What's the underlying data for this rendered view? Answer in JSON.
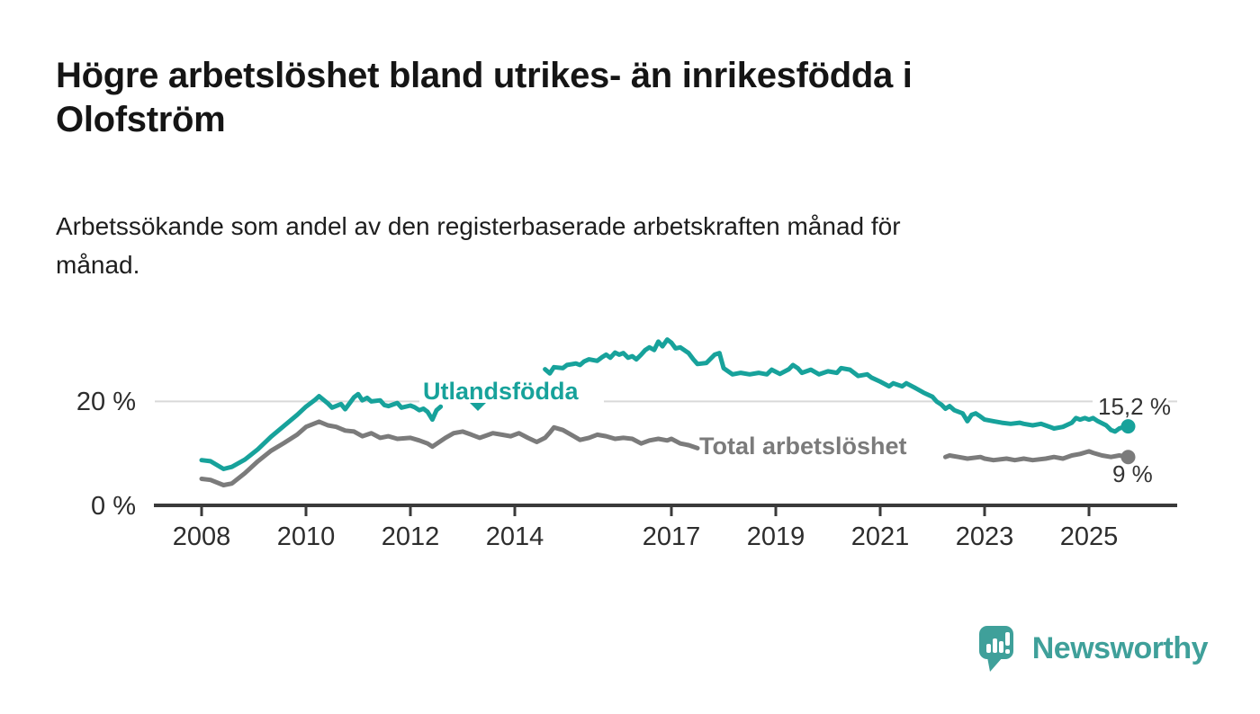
{
  "page": {
    "title_lines": [
      "Högre arbetslöshet bland utrikes- än inrikesfödda i",
      "Olofström"
    ],
    "subtitle_lines": [
      "Arbetssökande som andel av den registerbaserade arbetskraften månad för",
      "månad."
    ]
  },
  "chart_data": {
    "type": "line",
    "title": "Högre arbetslöshet bland utrikes- än inrikesfödda i Olofström",
    "subtitle": "Arbetssökande som andel av den registerbaserade arbetskraften månad för månad.",
    "unit": "%",
    "xlabel": "",
    "ylabel": "",
    "x_range_years": [
      2007.9,
      2026.1
    ],
    "ylim": [
      0,
      34
    ],
    "grid": "single horizontal gridline at 20 %",
    "legend_position": "labels inline on chart",
    "x_ticks": [
      {
        "value": 2008,
        "label": "2008"
      },
      {
        "value": 2010,
        "label": "2010"
      },
      {
        "value": 2012,
        "label": "2012"
      },
      {
        "value": 2014,
        "label": "2014"
      },
      {
        "value": 2017,
        "label": "2017"
      },
      {
        "value": 2019,
        "label": "2019"
      },
      {
        "value": 2021,
        "label": "2021"
      },
      {
        "value": 2023,
        "label": "2023"
      },
      {
        "value": 2025,
        "label": "2025"
      }
    ],
    "y_ticks": [
      {
        "value": 0,
        "label": "0 %"
      },
      {
        "value": 20,
        "label": "20 %"
      }
    ],
    "series": [
      {
        "name": "Utlandsfödda",
        "color": "#17a29b",
        "end_value": 15.2,
        "end_value_label": "15,2 %",
        "note": "line hidden behind its label between late 2012 and mid 2014",
        "points_year_percent": [
          [
            2008.0,
            8.7
          ],
          [
            2008.17,
            8.5
          ],
          [
            2008.42,
            7.0
          ],
          [
            2008.58,
            7.4
          ],
          [
            2008.83,
            8.8
          ],
          [
            2009.08,
            10.8
          ],
          [
            2009.33,
            13.2
          ],
          [
            2009.58,
            15.3
          ],
          [
            2009.83,
            17.4
          ],
          [
            2010.0,
            19.0
          ],
          [
            2010.17,
            20.3
          ],
          [
            2010.25,
            21.0
          ],
          [
            2010.42,
            19.6
          ],
          [
            2010.5,
            18.8
          ],
          [
            2010.67,
            19.5
          ],
          [
            2010.75,
            18.5
          ],
          [
            2010.92,
            20.8
          ],
          [
            2011.0,
            21.4
          ],
          [
            2011.08,
            20.2
          ],
          [
            2011.17,
            20.7
          ],
          [
            2011.25,
            20.0
          ],
          [
            2011.42,
            20.2
          ],
          [
            2011.5,
            19.3
          ],
          [
            2011.58,
            19.1
          ],
          [
            2011.75,
            19.7
          ],
          [
            2011.83,
            18.8
          ],
          [
            2012.0,
            19.2
          ],
          [
            2012.08,
            18.9
          ],
          [
            2012.17,
            18.3
          ],
          [
            2012.25,
            18.6
          ],
          [
            2012.33,
            18.0
          ],
          [
            2012.42,
            16.5
          ],
          [
            2012.5,
            18.3
          ],
          [
            2012.58,
            19.0
          ],
          null,
          [
            2014.58,
            26.2
          ],
          [
            2014.67,
            25.4
          ],
          [
            2014.75,
            26.6
          ],
          [
            2014.92,
            26.4
          ],
          [
            2015.0,
            27.0
          ],
          [
            2015.17,
            27.3
          ],
          [
            2015.25,
            27.0
          ],
          [
            2015.33,
            27.7
          ],
          [
            2015.42,
            28.1
          ],
          [
            2015.58,
            27.8
          ],
          [
            2015.67,
            28.5
          ],
          [
            2015.75,
            29.0
          ],
          [
            2015.83,
            28.4
          ],
          [
            2015.92,
            29.4
          ],
          [
            2016.0,
            29.0
          ],
          [
            2016.08,
            29.3
          ],
          [
            2016.17,
            28.4
          ],
          [
            2016.25,
            28.7
          ],
          [
            2016.33,
            28.1
          ],
          [
            2016.42,
            29.0
          ],
          [
            2016.5,
            29.9
          ],
          [
            2016.58,
            30.4
          ],
          [
            2016.67,
            29.9
          ],
          [
            2016.75,
            31.5
          ],
          [
            2016.83,
            30.6
          ],
          [
            2016.92,
            31.9
          ],
          [
            2017.0,
            31.3
          ],
          [
            2017.08,
            30.2
          ],
          [
            2017.17,
            30.4
          ],
          [
            2017.33,
            29.3
          ],
          [
            2017.42,
            28.1
          ],
          [
            2017.5,
            27.2
          ],
          [
            2017.67,
            27.4
          ],
          [
            2017.83,
            29.0
          ],
          [
            2017.92,
            29.3
          ],
          [
            2018.0,
            26.4
          ],
          [
            2018.17,
            25.2
          ],
          [
            2018.33,
            25.5
          ],
          [
            2018.5,
            25.2
          ],
          [
            2018.67,
            25.5
          ],
          [
            2018.83,
            25.2
          ],
          [
            2018.92,
            26.1
          ],
          [
            2019.08,
            25.3
          ],
          [
            2019.25,
            26.2
          ],
          [
            2019.33,
            27.0
          ],
          [
            2019.42,
            26.4
          ],
          [
            2019.5,
            25.5
          ],
          [
            2019.67,
            26.1
          ],
          [
            2019.83,
            25.2
          ],
          [
            2020.0,
            25.8
          ],
          [
            2020.17,
            25.5
          ],
          [
            2020.25,
            26.4
          ],
          [
            2020.42,
            26.1
          ],
          [
            2020.58,
            24.9
          ],
          [
            2020.75,
            25.2
          ],
          [
            2020.83,
            24.6
          ],
          [
            2021.0,
            23.8
          ],
          [
            2021.17,
            22.9
          ],
          [
            2021.25,
            23.5
          ],
          [
            2021.42,
            22.9
          ],
          [
            2021.5,
            23.5
          ],
          [
            2021.67,
            22.6
          ],
          [
            2021.83,
            21.7
          ],
          [
            2022.0,
            20.9
          ],
          [
            2022.08,
            20.0
          ],
          [
            2022.17,
            19.4
          ],
          [
            2022.25,
            18.6
          ],
          [
            2022.33,
            19.1
          ],
          [
            2022.42,
            18.3
          ],
          [
            2022.58,
            17.7
          ],
          [
            2022.67,
            16.2
          ],
          [
            2022.75,
            17.4
          ],
          [
            2022.83,
            17.7
          ],
          [
            2022.92,
            17.1
          ],
          [
            2023.0,
            16.5
          ],
          [
            2023.17,
            16.2
          ],
          [
            2023.33,
            15.9
          ],
          [
            2023.5,
            15.7
          ],
          [
            2023.67,
            15.9
          ],
          [
            2023.75,
            15.7
          ],
          [
            2023.92,
            15.4
          ],
          [
            2024.08,
            15.7
          ],
          [
            2024.25,
            15.1
          ],
          [
            2024.33,
            14.8
          ],
          [
            2024.5,
            15.1
          ],
          [
            2024.67,
            15.9
          ],
          [
            2024.75,
            16.8
          ],
          [
            2024.83,
            16.5
          ],
          [
            2024.92,
            16.8
          ],
          [
            2025.0,
            16.5
          ],
          [
            2025.08,
            16.8
          ],
          [
            2025.17,
            16.2
          ],
          [
            2025.33,
            15.4
          ],
          [
            2025.42,
            14.5
          ],
          [
            2025.5,
            14.2
          ],
          [
            2025.58,
            14.8
          ],
          [
            2025.67,
            15.1
          ],
          [
            2025.75,
            15.2
          ]
        ]
      },
      {
        "name": "Total arbetslöshet",
        "color": "#7b7b7b",
        "end_value": 9,
        "end_value_label": "9 %",
        "note": "line hidden behind its label between mid 2017 and early 2022",
        "points_year_percent": [
          [
            2008.0,
            5.1
          ],
          [
            2008.17,
            4.9
          ],
          [
            2008.42,
            3.9
          ],
          [
            2008.58,
            4.2
          ],
          [
            2008.83,
            6.2
          ],
          [
            2009.08,
            8.5
          ],
          [
            2009.33,
            10.5
          ],
          [
            2009.58,
            12.0
          ],
          [
            2009.83,
            13.6
          ],
          [
            2010.0,
            15.1
          ],
          [
            2010.25,
            16.1
          ],
          [
            2010.42,
            15.4
          ],
          [
            2010.58,
            15.1
          ],
          [
            2010.75,
            14.4
          ],
          [
            2010.92,
            14.2
          ],
          [
            2011.08,
            13.3
          ],
          [
            2011.25,
            13.9
          ],
          [
            2011.42,
            13.0
          ],
          [
            2011.58,
            13.3
          ],
          [
            2011.75,
            12.8
          ],
          [
            2012.0,
            13.0
          ],
          [
            2012.17,
            12.5
          ],
          [
            2012.33,
            11.9
          ],
          [
            2012.42,
            11.3
          ],
          [
            2012.67,
            13.0
          ],
          [
            2012.83,
            13.9
          ],
          [
            2013.0,
            14.2
          ],
          [
            2013.17,
            13.6
          ],
          [
            2013.33,
            13.0
          ],
          [
            2013.5,
            13.6
          ],
          [
            2013.58,
            13.9
          ],
          [
            2013.75,
            13.6
          ],
          [
            2013.92,
            13.3
          ],
          [
            2014.08,
            13.9
          ],
          [
            2014.25,
            13.0
          ],
          [
            2014.42,
            12.2
          ],
          [
            2014.58,
            13.0
          ],
          [
            2014.67,
            14.0
          ],
          [
            2014.75,
            15.0
          ],
          [
            2014.92,
            14.5
          ],
          [
            2015.08,
            13.6
          ],
          [
            2015.25,
            12.6
          ],
          [
            2015.42,
            13.0
          ],
          [
            2015.58,
            13.6
          ],
          [
            2015.75,
            13.3
          ],
          [
            2015.92,
            12.8
          ],
          [
            2016.08,
            13.0
          ],
          [
            2016.25,
            12.8
          ],
          [
            2016.42,
            11.9
          ],
          [
            2016.58,
            12.5
          ],
          [
            2016.75,
            12.8
          ],
          [
            2016.92,
            12.5
          ],
          [
            2017.0,
            12.8
          ],
          [
            2017.17,
            11.9
          ],
          [
            2017.33,
            11.6
          ],
          [
            2017.5,
            11.0
          ],
          null,
          [
            2022.25,
            9.3
          ],
          [
            2022.33,
            9.6
          ],
          [
            2022.5,
            9.3
          ],
          [
            2022.67,
            9.0
          ],
          [
            2022.92,
            9.3
          ],
          [
            2023.0,
            9.0
          ],
          [
            2023.17,
            8.7
          ],
          [
            2023.42,
            9.0
          ],
          [
            2023.58,
            8.7
          ],
          [
            2023.75,
            9.0
          ],
          [
            2023.92,
            8.7
          ],
          [
            2024.17,
            9.0
          ],
          [
            2024.33,
            9.3
          ],
          [
            2024.5,
            9.0
          ],
          [
            2024.67,
            9.6
          ],
          [
            2024.83,
            9.9
          ],
          [
            2025.0,
            10.4
          ],
          [
            2025.08,
            10.1
          ],
          [
            2025.25,
            9.6
          ],
          [
            2025.42,
            9.3
          ],
          [
            2025.58,
            9.6
          ],
          [
            2025.75,
            9.3
          ]
        ]
      }
    ]
  },
  "branding": {
    "name": "Newsworthy",
    "color": "#3fa09a",
    "icon": "bar-chart-speech-bubble-icon"
  }
}
